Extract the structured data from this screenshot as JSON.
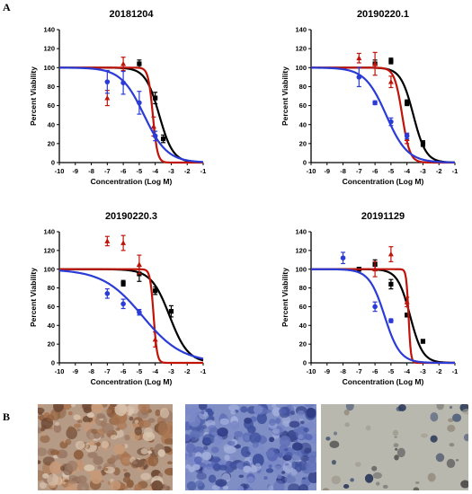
{
  "panel_labels": {
    "a": "A",
    "b": "B"
  },
  "colors": {
    "black": "#000000",
    "red": "#c0140a",
    "blue": "#2b3bd6"
  },
  "photos": [
    {
      "name": "tissue-stained-brown",
      "bg": "#b59a86"
    },
    {
      "name": "tissue-stained-blue",
      "bg": "#7f8ec4"
    },
    {
      "name": "cells-sparse-blue",
      "bg": "#b9b8ae"
    }
  ],
  "chart_data": [
    {
      "type": "line",
      "title": "20181204",
      "xlabel": "Concentration (Log M)",
      "ylabel": "Percent Viability",
      "xlim": [
        -10,
        -1
      ],
      "ylim": [
        0,
        140
      ],
      "xticks": [
        -10,
        -9,
        -8,
        -7,
        -6,
        -5,
        -4,
        -3,
        -2,
        -1
      ],
      "yticks": [
        0,
        20,
        40,
        60,
        80,
        100,
        120,
        140
      ],
      "series": [
        {
          "color": "black",
          "curve": {
            "top": 100,
            "bottom": 0,
            "logEC50": -3.75,
            "hill": 1.0
          },
          "points": [
            {
              "x": -5,
              "y": 104,
              "err": 4
            },
            {
              "x": -4,
              "y": 68,
              "err": 6
            },
            {
              "x": -3.5,
              "y": 25,
              "err": 4
            }
          ]
        },
        {
          "color": "red",
          "curve": {
            "top": 100,
            "bottom": 0,
            "logEC50": -4.15,
            "hill": 3.0
          },
          "points": [
            {
              "x": -7,
              "y": 68,
              "err": 8
            },
            {
              "x": -6,
              "y": 104,
              "err": 7
            },
            {
              "x": -4.1,
              "y": 38,
              "err": 10
            }
          ]
        },
        {
          "color": "blue",
          "curve": {
            "top": 100,
            "bottom": 0,
            "logEC50": -4.7,
            "hill": 0.6
          },
          "points": [
            {
              "x": -7,
              "y": 85,
              "err": 12
            },
            {
              "x": -6,
              "y": 84,
              "err": 12
            },
            {
              "x": -5,
              "y": 63,
              "err": 12
            },
            {
              "x": -4,
              "y": 28,
              "err": 5
            }
          ]
        }
      ]
    },
    {
      "type": "line",
      "title": "20190220.1",
      "xlabel": "Concentration (Log M)",
      "ylabel": "Percent Viability",
      "xlim": [
        -10,
        -1
      ],
      "ylim": [
        0,
        140
      ],
      "xticks": [
        -10,
        -9,
        -8,
        -7,
        -6,
        -5,
        -4,
        -3,
        -2,
        -1
      ],
      "yticks": [
        0,
        20,
        40,
        60,
        80,
        100,
        120,
        140
      ],
      "series": [
        {
          "color": "black",
          "curve": {
            "top": 100,
            "bottom": 0,
            "logEC50": -3.6,
            "hill": 1.1
          },
          "points": [
            {
              "x": -6,
              "y": 104,
              "err": 4
            },
            {
              "x": -5,
              "y": 107,
              "err": 3
            },
            {
              "x": -4,
              "y": 63,
              "err": 3
            },
            {
              "x": -3,
              "y": 20,
              "err": 3
            }
          ]
        },
        {
          "color": "red",
          "curve": {
            "top": 100,
            "bottom": 0,
            "logEC50": -4.3,
            "hill": 1.8
          },
          "points": [
            {
              "x": -7,
              "y": 110,
              "err": 5
            },
            {
              "x": -6,
              "y": 104,
              "err": 12
            },
            {
              "x": -5,
              "y": 85,
              "err": 6
            },
            {
              "x": -4,
              "y": 25,
              "err": 5
            }
          ]
        },
        {
          "color": "blue",
          "curve": {
            "top": 100,
            "bottom": 0,
            "logEC50": -5.3,
            "hill": 0.65
          },
          "points": [
            {
              "x": -7,
              "y": 90,
              "err": 10
            },
            {
              "x": -6,
              "y": 63,
              "err": 2
            },
            {
              "x": -5,
              "y": 43,
              "err": 4
            },
            {
              "x": -4,
              "y": 28,
              "err": 3
            }
          ]
        }
      ]
    },
    {
      "type": "line",
      "title": "20190220.3",
      "xlabel": "Concentration (Log M)",
      "ylabel": "Percent Viability",
      "xlim": [
        -10,
        -1
      ],
      "ylim": [
        0,
        140
      ],
      "xticks": [
        -10,
        -9,
        -8,
        -7,
        -6,
        -5,
        -4,
        -3,
        -2,
        -1
      ],
      "yticks": [
        0,
        20,
        40,
        60,
        80,
        100,
        120,
        140
      ],
      "series": [
        {
          "color": "black",
          "curve": {
            "top": 100,
            "bottom": 0,
            "logEC50": -3.1,
            "hill": 0.75
          },
          "points": [
            {
              "x": -6,
              "y": 85,
              "err": 3
            },
            {
              "x": -5,
              "y": 95,
              "err": 8
            },
            {
              "x": -4,
              "y": 77,
              "err": 4
            },
            {
              "x": -3,
              "y": 55,
              "err": 6
            }
          ]
        },
        {
          "color": "red",
          "curve": {
            "top": 100,
            "bottom": 0,
            "logEC50": -4.1,
            "hill": 4.0
          },
          "points": [
            {
              "x": -7,
              "y": 130,
              "err": 5
            },
            {
              "x": -6,
              "y": 128,
              "err": 8
            },
            {
              "x": -5,
              "y": 105,
              "err": 10
            },
            {
              "x": -4,
              "y": 25,
              "err": 8
            }
          ]
        },
        {
          "color": "blue",
          "curve": {
            "top": 100,
            "bottom": 0,
            "logEC50": -4.8,
            "hill": 0.35
          },
          "points": [
            {
              "x": -7,
              "y": 74,
              "err": 5
            },
            {
              "x": -6,
              "y": 63,
              "err": 5
            },
            {
              "x": -5,
              "y": 54,
              "err": 3
            }
          ]
        }
      ]
    },
    {
      "type": "line",
      "title": "20191129",
      "xlabel": "Concentration (Log M)",
      "ylabel": "Percent Viability",
      "xlim": [
        -10,
        -1
      ],
      "ylim": [
        0,
        140
      ],
      "xticks": [
        -10,
        -9,
        -8,
        -7,
        -6,
        -5,
        -4,
        -3,
        -2,
        -1
      ],
      "yticks": [
        0,
        20,
        40,
        60,
        80,
        100,
        120,
        140
      ],
      "series": [
        {
          "color": "black",
          "curve": {
            "top": 100,
            "bottom": 0,
            "logEC50": -3.8,
            "hill": 1.1
          },
          "points": [
            {
              "x": -7,
              "y": 100,
              "err": 2
            },
            {
              "x": -6,
              "y": 105,
              "err": 5
            },
            {
              "x": -5,
              "y": 84,
              "err": 5
            },
            {
              "x": -4,
              "y": 51,
              "err": 2
            },
            {
              "x": -3,
              "y": 23,
              "err": 2
            }
          ]
        },
        {
          "color": "red",
          "curve": {
            "top": 100,
            "bottom": 0,
            "logEC50": -3.9,
            "hill": 6.0
          },
          "points": [
            {
              "x": -6,
              "y": 100,
              "err": 8
            },
            {
              "x": -5,
              "y": 116,
              "err": 8
            },
            {
              "x": -4,
              "y": 65,
              "err": 5
            }
          ]
        },
        {
          "color": "blue",
          "curve": {
            "top": 100,
            "bottom": 0,
            "logEC50": -5.4,
            "hill": 0.9
          },
          "points": [
            {
              "x": -8,
              "y": 112,
              "err": 6
            },
            {
              "x": -6,
              "y": 60,
              "err": 5
            },
            {
              "x": -5,
              "y": 45,
              "err": 2
            }
          ]
        }
      ]
    }
  ]
}
